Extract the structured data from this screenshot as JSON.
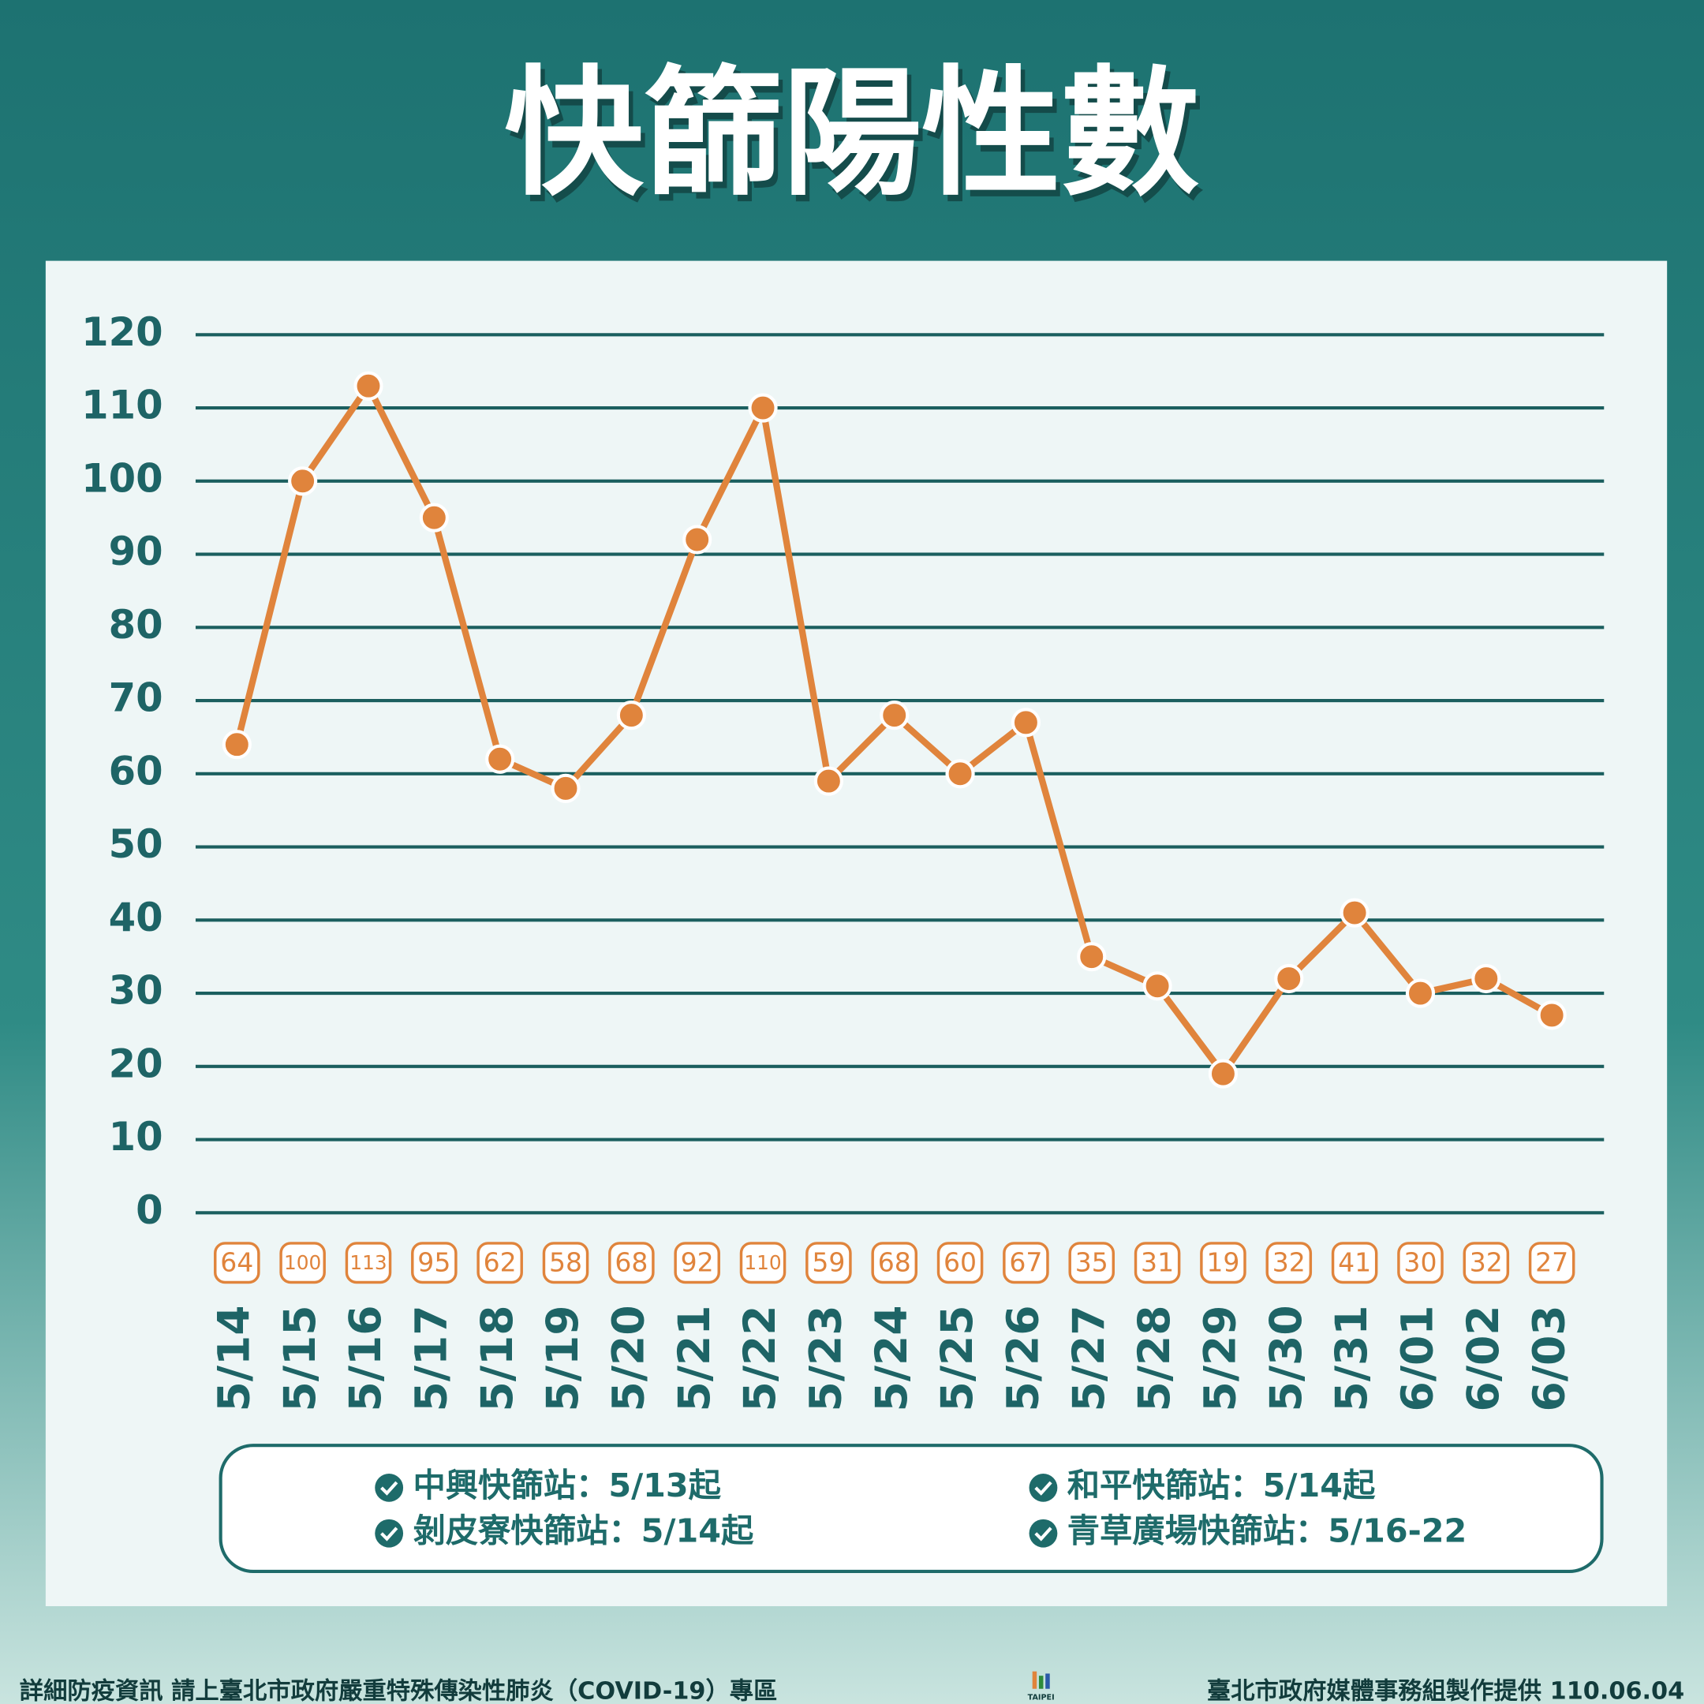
{
  "chart_data": {
    "type": "line",
    "title": "快篩陽性數",
    "categories": [
      "5/14",
      "5/15",
      "5/16",
      "5/17",
      "5/18",
      "5/19",
      "5/20",
      "5/21",
      "5/22",
      "5/23",
      "5/24",
      "5/25",
      "5/26",
      "5/27",
      "5/28",
      "5/29",
      "5/30",
      "5/31",
      "6/01",
      "6/02",
      "6/03"
    ],
    "values": [
      64,
      100,
      113,
      95,
      62,
      58,
      68,
      92,
      110,
      59,
      68,
      60,
      67,
      35,
      31,
      19,
      32,
      41,
      30,
      32,
      27
    ],
    "color": "#e0843c",
    "ylim": [
      0,
      120
    ],
    "yticks": [
      0,
      10,
      20,
      30,
      40,
      50,
      60,
      70,
      80,
      90,
      100,
      110,
      120
    ],
    "grid": true
  },
  "notes": [
    "中興快篩站：5/13起",
    "和平快篩站：5/14起",
    "剝皮寮快篩站：5/14起",
    "青草廣場快篩站：5/16-22"
  ],
  "footer": {
    "left": "詳細防疫資訊 請上臺北市政府嚴重特殊傳染性肺炎（COVID-19）專區",
    "logo": "TAIPEI",
    "right": "臺北市政府媒體事務組製作提供 110.06.04"
  }
}
